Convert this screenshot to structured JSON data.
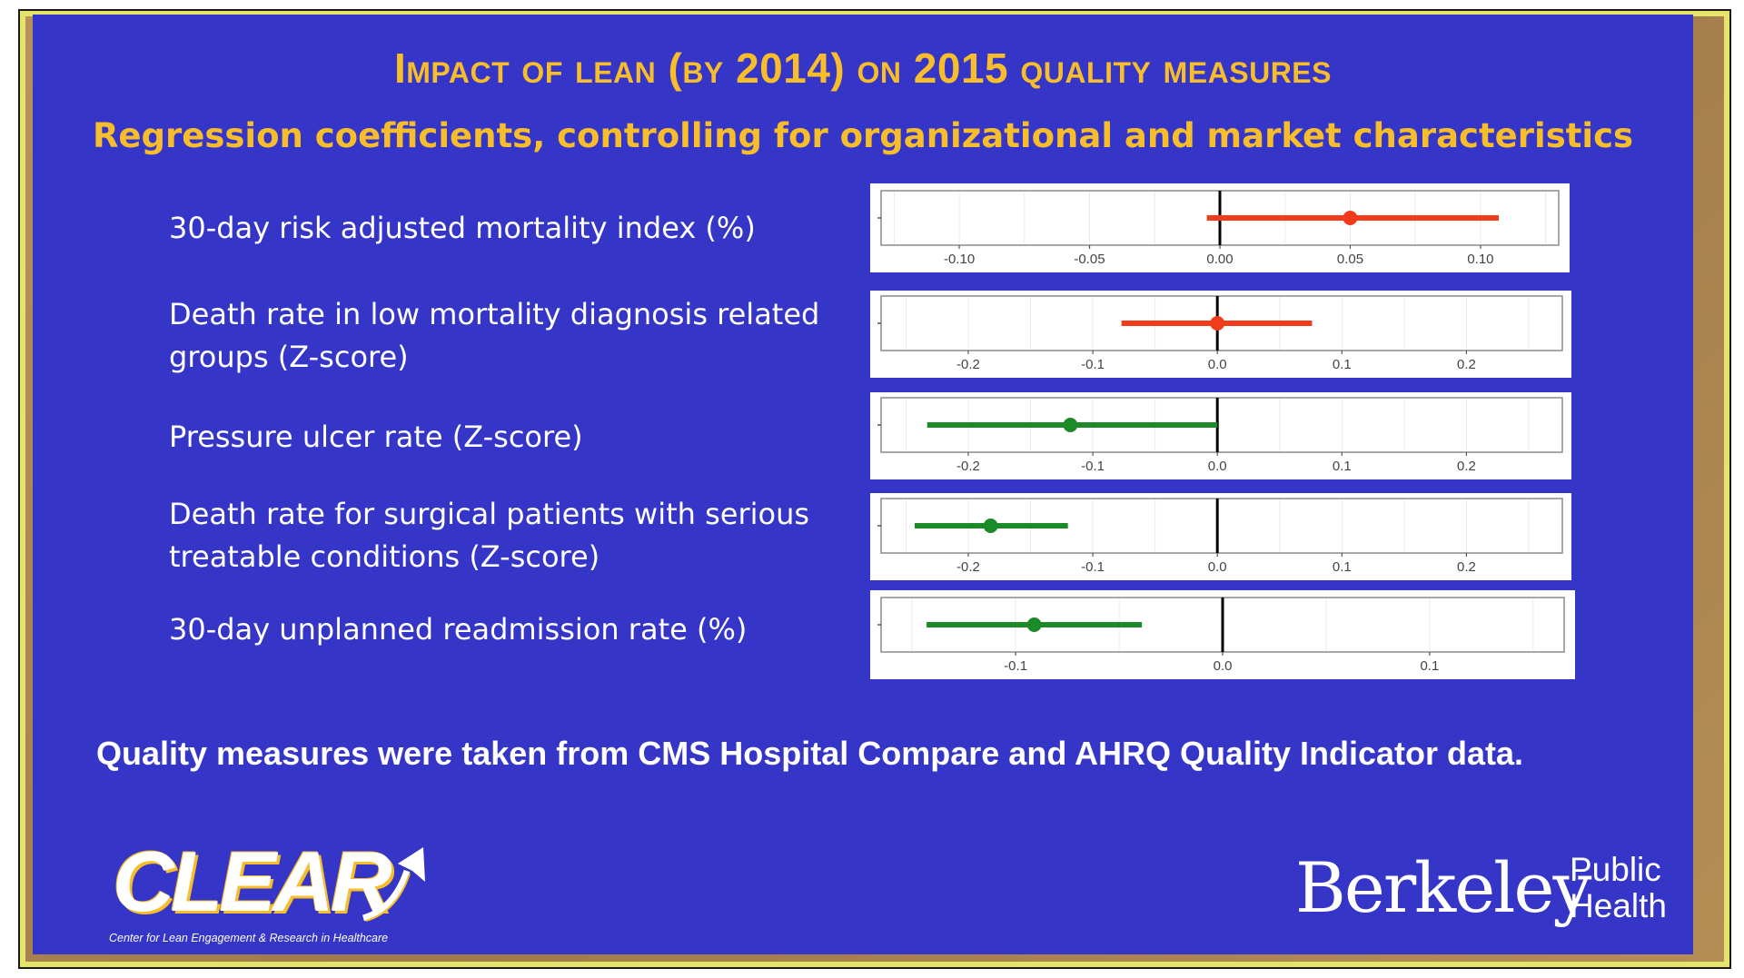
{
  "slide": {
    "title": "Impact of lean (by 2014) on 2015 quality measures",
    "subtitle": "Regression coefficients, controlling for organizational and market characteristics",
    "footnote": "Quality measures were taken from CMS Hospital Compare and AHRQ Quality Indicator data.",
    "colors": {
      "background": "#3535c8",
      "title": "#f7bd2a",
      "positive": "#f23b1b",
      "negative": "#1d8a2a"
    }
  },
  "logos": {
    "clear_word": "CLEAR",
    "clear_tagline": "Center for Lean Engagement & Research in Healthcare",
    "berkeley_word": "Berkeley",
    "public_health_line1": "Public",
    "public_health_line2": "Health",
    "arrow_icon": "up-right-arrow-icon"
  },
  "chart_data": [
    {
      "type": "scatter",
      "label": "30-day risk adjusted mortality index (%)",
      "estimate": 0.05,
      "ci": [
        -0.005,
        0.107
      ],
      "xlim": [
        -0.13,
        0.13
      ],
      "ticks": [
        "-0.10",
        "-0.05",
        "0.00",
        "0.05",
        "0.10"
      ],
      "tick_values": [
        -0.1,
        -0.05,
        0.0,
        0.05,
        0.1
      ],
      "color": "#f23b1b"
    },
    {
      "type": "scatter",
      "label": "Death rate in low mortality diagnosis related groups (Z-score)",
      "estimate": 0.0,
      "ci": [
        -0.077,
        0.076
      ],
      "xlim": [
        -0.27,
        0.277
      ],
      "ticks": [
        "-0.2",
        "-0.1",
        "0.0",
        "0.1",
        "0.2"
      ],
      "tick_values": [
        -0.2,
        -0.1,
        0.0,
        0.1,
        0.2
      ],
      "color": "#f23b1b"
    },
    {
      "type": "scatter",
      "label": "Pressure ulcer rate (Z-score)",
      "estimate": -0.118,
      "ci": [
        -0.233,
        0.0
      ],
      "xlim": [
        -0.27,
        0.277
      ],
      "ticks": [
        "-0.2",
        "-0.1",
        "0.0",
        "0.1",
        "0.2"
      ],
      "tick_values": [
        -0.2,
        -0.1,
        0.0,
        0.1,
        0.2
      ],
      "color": "#1d8a2a"
    },
    {
      "type": "scatter",
      "label": "Death rate for surgical patients with serious treatable conditions (Z-score)",
      "estimate": -0.182,
      "ci": [
        -0.243,
        -0.12
      ],
      "xlim": [
        -0.27,
        0.277
      ],
      "ticks": [
        "-0.2",
        "-0.1",
        "0.0",
        "0.1",
        "0.2"
      ],
      "tick_values": [
        -0.2,
        -0.1,
        0.0,
        0.1,
        0.2
      ],
      "color": "#1d8a2a"
    },
    {
      "type": "scatter",
      "label": "30-day unplanned readmission rate (%)",
      "estimate": -0.091,
      "ci": [
        -0.143,
        -0.039
      ],
      "xlim": [
        -0.165,
        0.165
      ],
      "ticks": [
        "-0.1",
        "0.0",
        "0.1"
      ],
      "tick_values": [
        -0.1,
        0.0,
        0.1
      ],
      "color": "#1d8a2a"
    }
  ]
}
